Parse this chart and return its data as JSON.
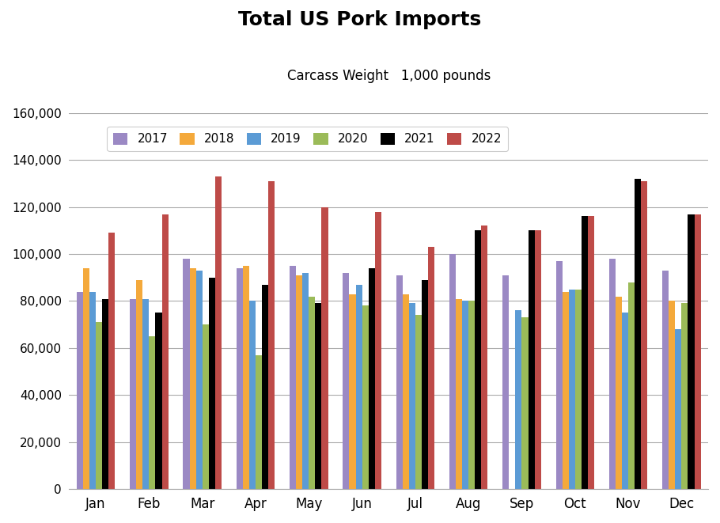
{
  "title": "Total US Pork Imports",
  "subtitle": "Carcass Weight   1,000 pounds",
  "months": [
    "Jan",
    "Feb",
    "Mar",
    "Apr",
    "May",
    "Jun",
    "Jul",
    "Aug",
    "Sep",
    "Oct",
    "Nov",
    "Dec"
  ],
  "series": {
    "2017": [
      84000,
      81000,
      98000,
      94000,
      95000,
      92000,
      91000,
      100000,
      91000,
      97000,
      98000,
      93000
    ],
    "2018": [
      94000,
      89000,
      94000,
      95000,
      91000,
      83000,
      83000,
      81000,
      0,
      84000,
      82000,
      80000
    ],
    "2019": [
      84000,
      81000,
      93000,
      80000,
      92000,
      87000,
      79000,
      80000,
      76000,
      85000,
      75000,
      68000
    ],
    "2020": [
      71000,
      65000,
      70000,
      57000,
      82000,
      78000,
      74000,
      80000,
      73000,
      85000,
      88000,
      79000
    ],
    "2021": [
      81000,
      75000,
      90000,
      87000,
      79000,
      94000,
      89000,
      110000,
      110000,
      116000,
      132000,
      117000
    ],
    "2022": [
      109000,
      117000,
      133000,
      131000,
      120000,
      118000,
      103000,
      112000,
      110000,
      116000,
      131000,
      117000
    ]
  },
  "colors": {
    "2017": "#9B89C4",
    "2018": "#F4A93B",
    "2019": "#5B9BD5",
    "2020": "#9BBB59",
    "2021": "#000000",
    "2022": "#BE4B48"
  },
  "ylim": [
    0,
    160000
  ],
  "yticks": [
    0,
    20000,
    40000,
    60000,
    80000,
    100000,
    120000,
    140000,
    160000
  ],
  "title_fontsize": 18,
  "subtitle_fontsize": 12,
  "bar_width": 0.12,
  "legend_inside": true
}
